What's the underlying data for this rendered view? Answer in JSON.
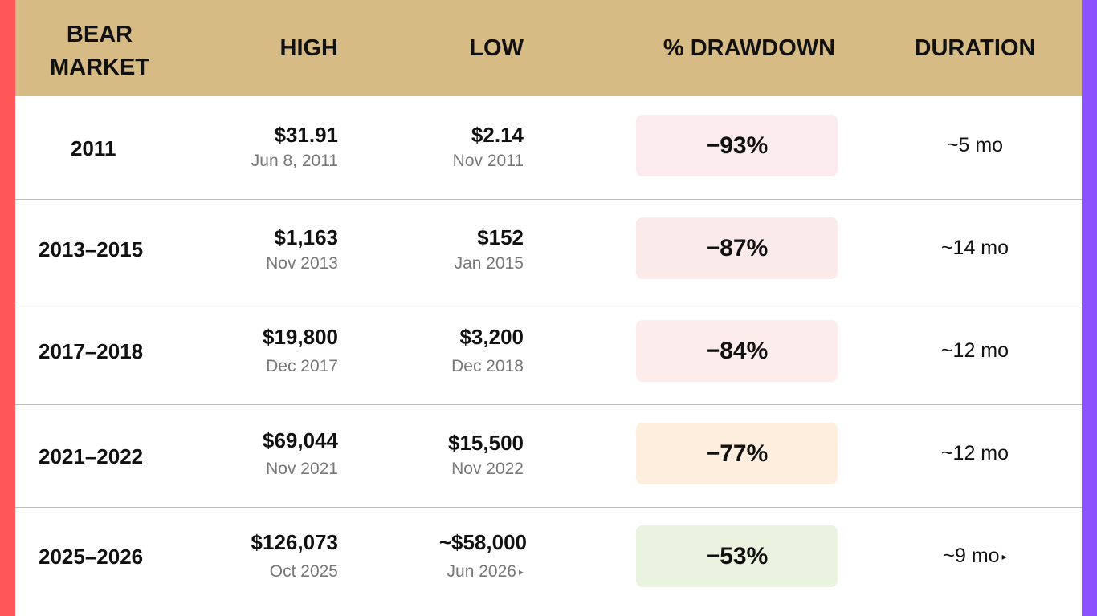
{
  "colors": {
    "header_bg": "#d7bb84",
    "left_edge": "#ff5757",
    "right_edge": "#8c52ff",
    "drawdown_bg": [
      "#fcebee",
      "#fbeaea",
      "#fcecec",
      "#fdeedd",
      "#eaf3df"
    ]
  },
  "headers": {
    "bear_market": "BEAR MARKET",
    "high": "HIGH",
    "low": "LOW",
    "drawdown": "% DRAWDOWN",
    "duration": "DURATION"
  },
  "rows": [
    {
      "period": "2011",
      "high": "$31.91",
      "high_date": "Jun 8, 2011",
      "low": "$2.14",
      "low_date": "Nov 2011",
      "drawdown": "−93%",
      "duration": "~5 mo"
    },
    {
      "period": "2013–2015",
      "high": "$1,163",
      "high_date": "Nov 2013",
      "low": "$152",
      "low_date": "Jan 2015",
      "drawdown": "−87%",
      "duration": "~14 mo"
    },
    {
      "period": "2017–2018",
      "high": "$19,800",
      "high_date": "Dec 2017",
      "low": "$3,200",
      "low_date": "Dec 2018",
      "drawdown": "−84%",
      "duration": "~12 mo"
    },
    {
      "period": "2021–2022",
      "high": "$69,044",
      "high_date": "Nov 2021",
      "low": "$15,500",
      "low_date": "Nov 2022",
      "drawdown": "−77%",
      "duration": "~12 mo"
    },
    {
      "period": "2025–2026",
      "high": "$126,073",
      "high_date": "Oct 2025",
      "low": "~$58,000",
      "low_date": "Jun 2026",
      "drawdown": "−53%",
      "duration": "~9 mo"
    }
  ],
  "icons": {
    "ongoing_marker": "right-triangle-icon"
  }
}
